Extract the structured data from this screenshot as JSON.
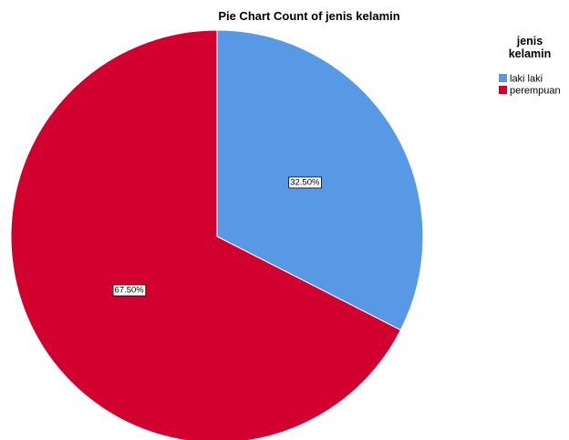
{
  "chart_data": {
    "type": "pie",
    "title": "Pie Chart Count of jenis kelamin",
    "legend": {
      "title_lines": [
        "jenis",
        "kelamin"
      ],
      "placement": "top-right"
    },
    "slices": [
      {
        "name": "laki laki",
        "value": 32.5,
        "label": "32.50%",
        "color": "#5899e6"
      },
      {
        "name": "perempuan",
        "value": 67.5,
        "label": "67.50%",
        "color": "#d2002f"
      }
    ],
    "start_angle": "12 o'clock",
    "direction": "clockwise",
    "border_color": "#ffffff"
  }
}
